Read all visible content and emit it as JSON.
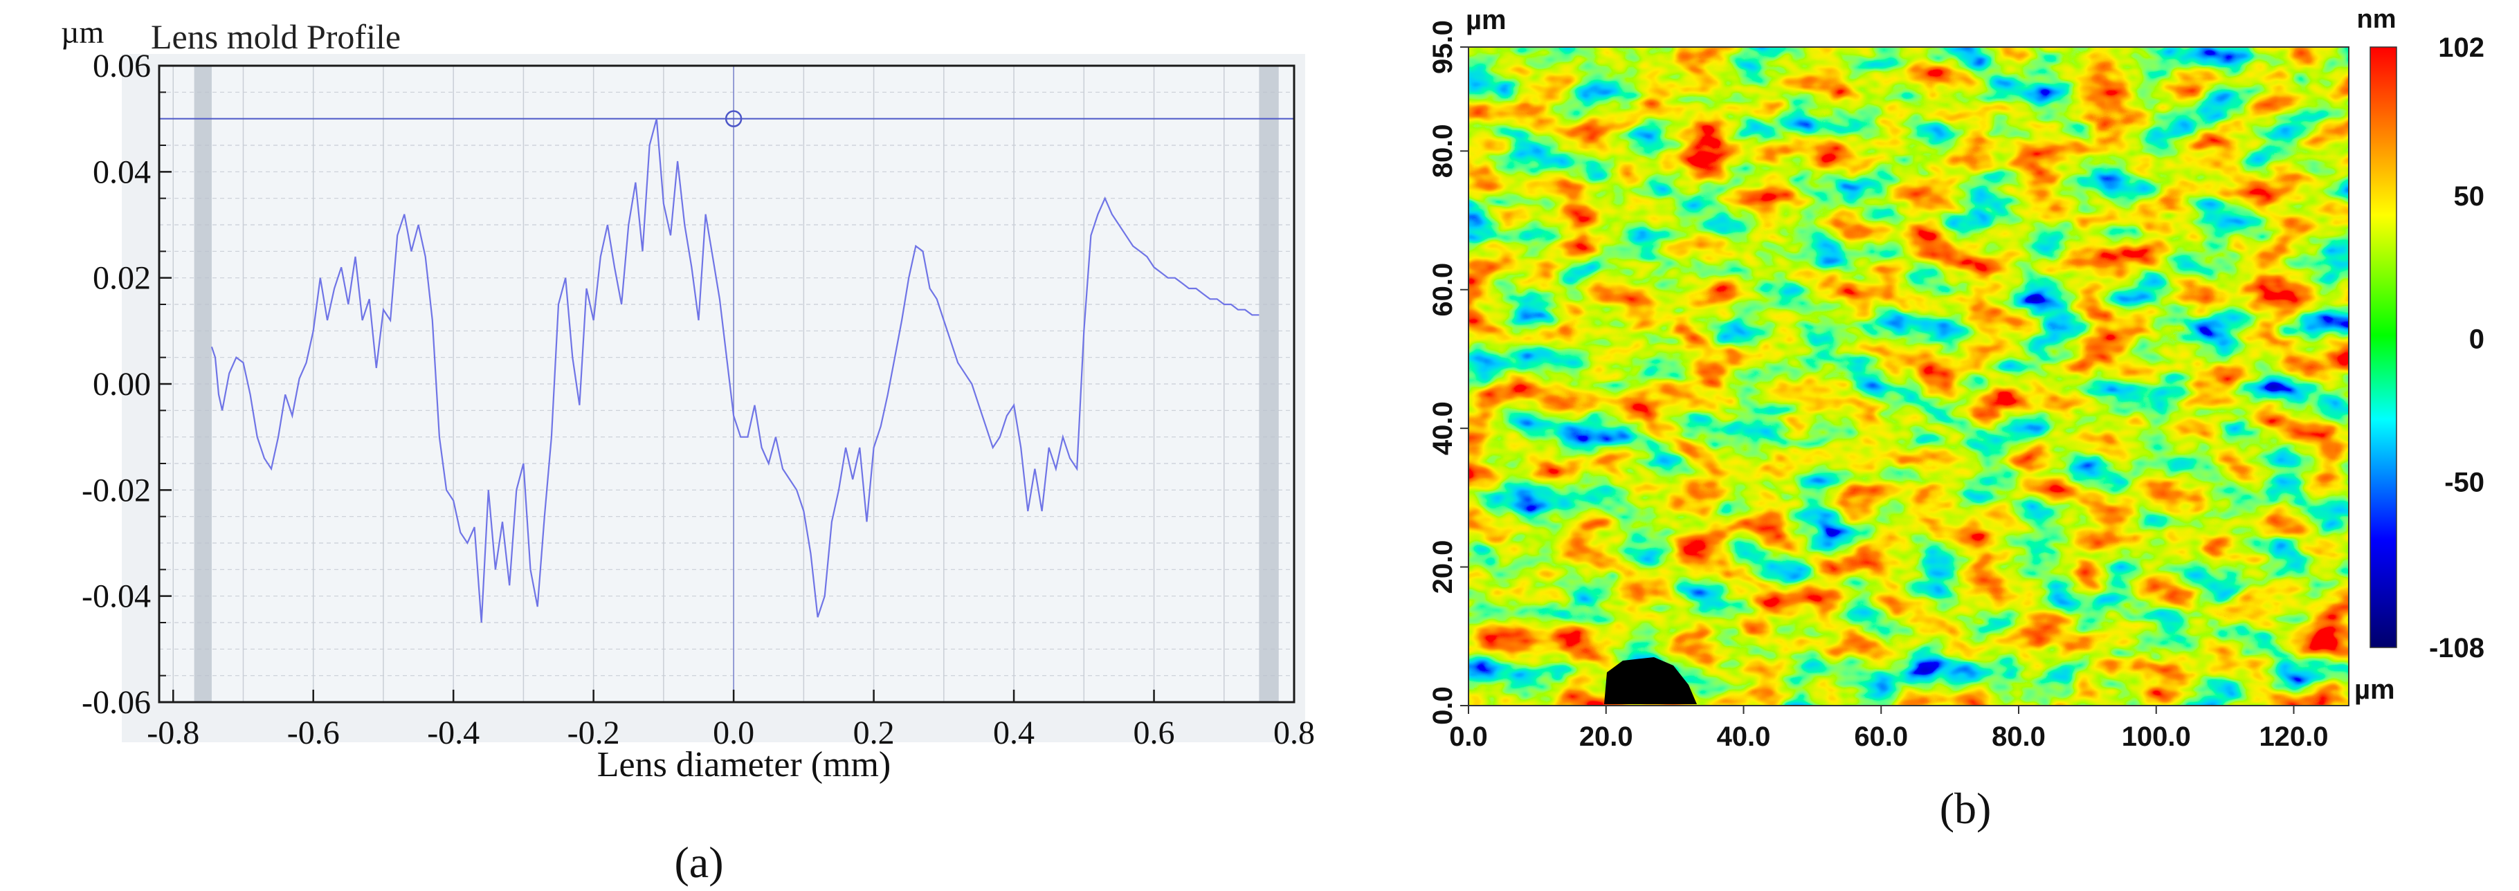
{
  "panel_a": {
    "caption": "(a)",
    "title": "Lens mold Profile",
    "unit": "µm",
    "xlabel": "Lens diameter (mm)",
    "x_ticks": [
      "-0.8",
      "-0.6",
      "-0.4",
      "-0.2",
      "0.0",
      "0.2",
      "0.4",
      "0.6",
      "0.8"
    ],
    "y_ticks": [
      "0.06",
      "0.04",
      "0.02",
      "0.00",
      "-0.02",
      "-0.04",
      "-0.06"
    ],
    "colors": {
      "line": "#6f74e6",
      "plot_bg": "#f2f5f8",
      "grid": "#c9ced6",
      "frame": "#1a1a1a",
      "band": "#b9c2cc",
      "ref_line": "#4d57c8"
    }
  },
  "panel_b": {
    "caption": "(b)",
    "x_unit": "µm",
    "y_unit": "µm",
    "colorbar_unit": "nm",
    "x_ticks": [
      "0.0",
      "20.0",
      "40.0",
      "60.0",
      "80.0",
      "100.0",
      "120.0"
    ],
    "y_ticks": [
      "0.0",
      "20.0",
      "40.0",
      "60.0",
      "80.0",
      "95.0"
    ],
    "colorbar_ticks": [
      "102",
      "50",
      "0",
      "-50",
      "-108"
    ],
    "colormap": [
      "#00006b",
      "#0000ff",
      "#00ffff",
      "#00ff00",
      "#ffff00",
      "#ff0000"
    ]
  },
  "chart_data": [
    {
      "type": "line",
      "title": "Lens mold Profile",
      "xlabel": "Lens diameter (mm)",
      "ylabel": "µm",
      "xlim": [
        -0.82,
        0.8
      ],
      "ylim": [
        -0.06,
        0.06
      ],
      "grid": true,
      "reference_line_y": 0.05,
      "series": [
        {
          "x": [
            -0.745,
            -0.74,
            -0.735,
            -0.73,
            -0.72,
            -0.71,
            -0.7,
            -0.69,
            -0.68,
            -0.67,
            -0.66,
            -0.65,
            -0.64,
            -0.63,
            -0.62,
            -0.61,
            -0.6,
            -0.59,
            -0.58,
            -0.57,
            -0.56,
            -0.55,
            -0.54,
            -0.53,
            -0.52,
            -0.51,
            -0.5,
            -0.49,
            -0.48,
            -0.47,
            -0.46,
            -0.45,
            -0.44,
            -0.43,
            -0.42,
            -0.41,
            -0.4,
            -0.39,
            -0.38,
            -0.37,
            -0.36,
            -0.35,
            -0.34,
            -0.33,
            -0.32,
            -0.31,
            -0.3,
            -0.29,
            -0.28,
            -0.27,
            -0.26,
            -0.25,
            -0.24,
            -0.23,
            -0.22,
            -0.21,
            -0.2,
            -0.19,
            -0.18,
            -0.17,
            -0.16,
            -0.15,
            -0.14,
            -0.13,
            -0.12,
            -0.11,
            -0.1,
            -0.09,
            -0.08,
            -0.07,
            -0.06,
            -0.05,
            -0.04,
            -0.03,
            -0.02,
            -0.01,
            0.0,
            0.01,
            0.02,
            0.03,
            0.04,
            0.05,
            0.06,
            0.07,
            0.08,
            0.09,
            0.1,
            0.11,
            0.12,
            0.13,
            0.14,
            0.15,
            0.16,
            0.17,
            0.18,
            0.19,
            0.2,
            0.21,
            0.22,
            0.23,
            0.24,
            0.25,
            0.26,
            0.27,
            0.28,
            0.29,
            0.3,
            0.31,
            0.32,
            0.33,
            0.34,
            0.35,
            0.36,
            0.37,
            0.38,
            0.39,
            0.4,
            0.41,
            0.42,
            0.43,
            0.44,
            0.45,
            0.46,
            0.47,
            0.48,
            0.49,
            0.5,
            0.51,
            0.52,
            0.53,
            0.54,
            0.55,
            0.56,
            0.57,
            0.58,
            0.59,
            0.6,
            0.61,
            0.62,
            0.63,
            0.64,
            0.65,
            0.66,
            0.67,
            0.68,
            0.69,
            0.7,
            0.71,
            0.72,
            0.73,
            0.74,
            0.75
          ],
          "y": [
            0.007,
            0.005,
            -0.002,
            -0.005,
            0.002,
            0.005,
            0.004,
            -0.002,
            -0.01,
            -0.014,
            -0.016,
            -0.01,
            -0.002,
            -0.006,
            0.001,
            0.004,
            0.01,
            0.02,
            0.012,
            0.018,
            0.022,
            0.015,
            0.024,
            0.012,
            0.016,
            0.003,
            0.014,
            0.012,
            0.028,
            0.032,
            0.025,
            0.03,
            0.024,
            0.012,
            -0.01,
            -0.02,
            -0.022,
            -0.028,
            -0.03,
            -0.027,
            -0.045,
            -0.02,
            -0.035,
            -0.026,
            -0.038,
            -0.02,
            -0.015,
            -0.035,
            -0.042,
            -0.025,
            -0.01,
            0.015,
            0.02,
            0.005,
            -0.004,
            0.018,
            0.012,
            0.024,
            0.03,
            0.022,
            0.015,
            0.03,
            0.038,
            0.025,
            0.045,
            0.05,
            0.034,
            0.028,
            0.042,
            0.03,
            0.022,
            0.012,
            0.032,
            0.024,
            0.016,
            0.005,
            -0.006,
            -0.01,
            -0.01,
            -0.004,
            -0.012,
            -0.015,
            -0.01,
            -0.016,
            -0.018,
            -0.02,
            -0.024,
            -0.032,
            -0.044,
            -0.04,
            -0.026,
            -0.02,
            -0.012,
            -0.018,
            -0.012,
            -0.026,
            -0.012,
            -0.008,
            -0.002,
            0.005,
            0.012,
            0.02,
            0.026,
            0.025,
            0.018,
            0.016,
            0.012,
            0.008,
            0.004,
            0.002,
            0.0,
            -0.004,
            -0.008,
            -0.012,
            -0.01,
            -0.006,
            -0.004,
            -0.012,
            -0.024,
            -0.016,
            -0.024,
            -0.012,
            -0.016,
            -0.01,
            -0.014,
            -0.016,
            0.01,
            0.028,
            0.032,
            0.035,
            0.032,
            0.03,
            0.028,
            0.026,
            0.025,
            0.024,
            0.022,
            0.021,
            0.02,
            0.02,
            0.019,
            0.018,
            0.018,
            0.017,
            0.016,
            0.016,
            0.015,
            0.015,
            0.014,
            0.014,
            0.013,
            0.013
          ]
        }
      ],
      "marker": {
        "x": 0.0,
        "y": 0.05
      }
    },
    {
      "type": "heatmap",
      "x_unit": "µm",
      "y_unit": "µm",
      "xlim": [
        0.0,
        128.0
      ],
      "ylim": [
        0.0,
        95.0
      ],
      "colorbar": {
        "unit": "nm",
        "min": -108,
        "max": 102,
        "ticks": [
          102,
          50,
          0,
          -50,
          -108
        ]
      }
    }
  ]
}
